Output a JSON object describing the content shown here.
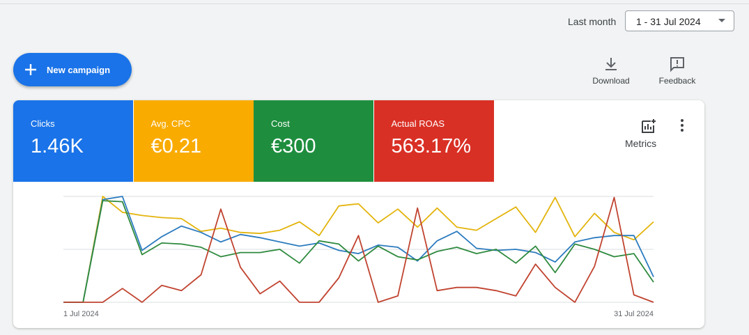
{
  "header": {
    "period_label": "Last month",
    "date_range": "1 - 31 Jul 2024"
  },
  "actions": {
    "new_campaign": "New campaign",
    "download": "Download",
    "feedback": "Feedback",
    "metrics": "Metrics"
  },
  "scorecards": [
    {
      "value": "1.46K"
    },
    {
      "value": "€0.21"
    },
    {
      "value": "€300"
    },
    {
      "value": "563.17%"
    }
  ],
  "chart_data": {
    "type": "line",
    "categories": [
      "1 Jul 2024",
      null,
      null,
      null,
      null,
      null,
      null,
      null,
      null,
      null,
      null,
      null,
      null,
      null,
      null,
      null,
      null,
      null,
      null,
      null,
      null,
      null,
      null,
      null,
      null,
      null,
      null,
      null,
      null,
      null,
      "31 Jul 2024"
    ],
    "ylim": [
      0,
      100
    ],
    "yticks": [
      0,
      50,
      100
    ],
    "grid": true,
    "series": [
      {
        "name": "Clicks",
        "color": "#1a73e8",
        "line_color": "#2b7bbf",
        "values": [
          0,
          0,
          97,
          100,
          49,
          62,
          72,
          66,
          57,
          64,
          61,
          57,
          53,
          56,
          49,
          46,
          54,
          52,
          39,
          58,
          67,
          51,
          49,
          50,
          47,
          38,
          57,
          61,
          63,
          63,
          24
        ]
      },
      {
        "name": "Avg. CPC",
        "color": "#f9ab00",
        "line_color": "#e3b40c",
        "values": [
          0,
          0,
          100,
          85,
          82,
          80,
          79,
          67,
          70,
          66,
          65,
          68,
          76,
          63,
          91,
          93,
          75,
          88,
          71,
          89,
          71,
          68,
          79,
          90,
          66,
          99,
          62,
          84,
          66,
          59,
          76
        ]
      },
      {
        "name": "Cost",
        "color": "#1e8e3e",
        "line_color": "#2e8a3e",
        "values": [
          0,
          0,
          96,
          95,
          45,
          56,
          55,
          52,
          43,
          47,
          47,
          50,
          37,
          58,
          55,
          39,
          53,
          43,
          40,
          48,
          52,
          46,
          50,
          37,
          53,
          28,
          55,
          50,
          43,
          46,
          19
        ]
      },
      {
        "name": "Actual ROAS",
        "color": "#d93025",
        "line_color": "#c0432f",
        "values": [
          0,
          0,
          0,
          13,
          0,
          16,
          11,
          26,
          88,
          33,
          8,
          20,
          0,
          0,
          23,
          63,
          0,
          6,
          89,
          11,
          14,
          14,
          11,
          6,
          36,
          14,
          0,
          34,
          99,
          7,
          0
        ]
      }
    ]
  }
}
